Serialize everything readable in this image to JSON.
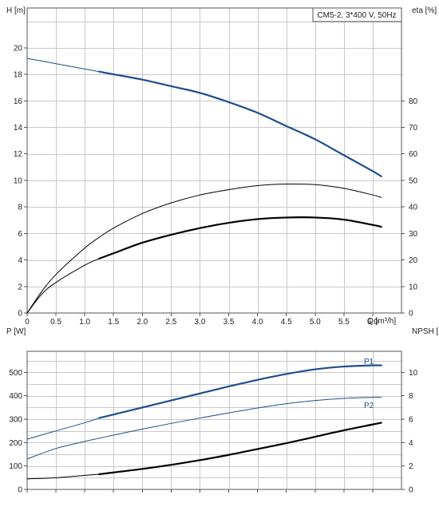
{
  "chart_data": [
    {
      "type": "line",
      "title": "CM5-2, 3*400 V, 50Hz",
      "xlabel": "Q [m³/h]",
      "ylabel": "H [m]",
      "ylabel_right": "eta [%]",
      "xlim": [
        0,
        6.5
      ],
      "ylim": [
        0,
        23
      ],
      "ylim_right": [
        0,
        115
      ],
      "x_ticks": [
        "0",
        "0.5",
        "1.0",
        "1.5",
        "2.0",
        "2.5",
        "3.0",
        "3.5",
        "4.0",
        "4.5",
        "5.0",
        "5.5",
        "6.0"
      ],
      "y_ticks": [
        "0",
        "2",
        "4",
        "6",
        "8",
        "10",
        "12",
        "14",
        "16",
        "18",
        "20"
      ],
      "y_ticks_right": [
        "0",
        "10",
        "20",
        "30",
        "40",
        "50",
        "60",
        "70",
        "80"
      ],
      "grid": true,
      "series": [
        {
          "axis": "left",
          "color": "#1f4e8c",
          "width": 1,
          "x": [
            0,
            0.5,
            1.0,
            1.25
          ],
          "y": [
            19.2,
            18.8,
            18.4,
            18.2
          ]
        },
        {
          "axis": "left",
          "color": "#1f4e8c",
          "width": 2.2,
          "x": [
            1.25,
            1.5,
            2.0,
            2.5,
            3.0,
            3.5,
            4.0,
            4.5,
            5.0,
            5.5,
            6.0,
            6.15
          ],
          "y": [
            18.2,
            18.0,
            17.6,
            17.1,
            16.6,
            15.9,
            15.1,
            14.1,
            13.1,
            11.9,
            10.7,
            10.3
          ]
        },
        {
          "axis": "right",
          "color": "#000000",
          "width": 1,
          "x": [
            0,
            0.25,
            0.5,
            1.0,
            1.25,
            1.5,
            2.0,
            2.5,
            3.0,
            3.5,
            4.0,
            4.5,
            5.0,
            5.5,
            6.0,
            6.15
          ],
          "y": [
            0,
            8,
            14.5,
            24.5,
            28.5,
            32,
            37.5,
            41.5,
            44.5,
            46.5,
            48,
            48.6,
            48.4,
            47,
            44.5,
            43.6
          ]
        },
        {
          "axis": "right",
          "color": "#000000",
          "width": 1,
          "x": [
            0,
            0.25,
            0.5,
            1.0,
            1.25
          ],
          "y": [
            0,
            7,
            11.5,
            18,
            20.5
          ]
        },
        {
          "axis": "right",
          "color": "#000000",
          "width": 2.2,
          "x": [
            1.25,
            1.5,
            2.0,
            2.5,
            3.0,
            3.5,
            4.0,
            4.5,
            5.0,
            5.5,
            6.0,
            6.15
          ],
          "y": [
            20.5,
            22.5,
            26.5,
            29.5,
            32,
            34,
            35.4,
            36,
            36,
            35.2,
            33.2,
            32.5
          ]
        }
      ]
    },
    {
      "type": "line",
      "title": "",
      "xlabel": "",
      "ylabel": "P [W]",
      "ylabel_right": "NPSH [m]",
      "xlim": [
        0,
        6.5
      ],
      "ylim": [
        0,
        590
      ],
      "ylim_right": [
        0,
        11.8
      ],
      "y_ticks": [
        "0",
        "100",
        "200",
        "300",
        "400",
        "500"
      ],
      "y_ticks_right": [
        "0",
        "2",
        "4",
        "6",
        "8",
        "10"
      ],
      "grid": true,
      "series": [
        {
          "name": "P1",
          "axis": "left",
          "color": "#1f4e8c",
          "width": 1,
          "x": [
            0,
            0.5,
            1.0,
            1.25
          ],
          "y": [
            215,
            250,
            285,
            305
          ]
        },
        {
          "name": "P1",
          "axis": "left",
          "color": "#1f4e8c",
          "width": 2.2,
          "x": [
            1.25,
            1.5,
            2.0,
            2.5,
            3.0,
            3.5,
            4.0,
            4.5,
            5.0,
            5.5,
            6.0,
            6.15
          ],
          "y": [
            305,
            320,
            350,
            380,
            410,
            440,
            468,
            493,
            513,
            525,
            530,
            530
          ]
        },
        {
          "name": "P2",
          "axis": "left",
          "color": "#1f4e8c",
          "width": 1,
          "x": [
            0,
            0.5,
            1.0,
            1.5,
            2.0,
            2.5,
            3.0,
            3.5,
            4.0,
            4.5,
            5.0,
            5.5,
            6.0,
            6.15
          ],
          "y": [
            130,
            175,
            205,
            232,
            258,
            282,
            305,
            327,
            348,
            366,
            380,
            389,
            393,
            393
          ]
        },
        {
          "axis": "right",
          "color": "#000000",
          "width": 1,
          "x": [
            0,
            0.5,
            1.0,
            1.25
          ],
          "y": [
            0.9,
            1.0,
            1.2,
            1.3
          ]
        },
        {
          "axis": "right",
          "color": "#000000",
          "width": 2.2,
          "x": [
            1.25,
            1.5,
            2.0,
            2.5,
            3.0,
            3.5,
            4.0,
            4.5,
            5.0,
            5.5,
            6.0,
            6.15
          ],
          "y": [
            1.3,
            1.45,
            1.75,
            2.1,
            2.5,
            2.95,
            3.45,
            3.95,
            4.5,
            5.05,
            5.55,
            5.7
          ]
        }
      ]
    }
  ]
}
